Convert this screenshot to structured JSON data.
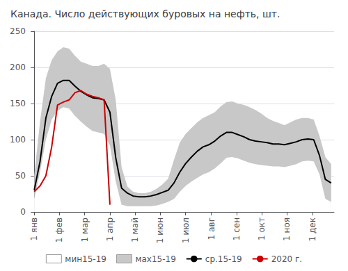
{
  "chart_data": {
    "type": "line",
    "title": "Канада. Число действующих буровых на нефть, шт.",
    "x": [
      0,
      1,
      2,
      3,
      4,
      5,
      6,
      7,
      8,
      9,
      10,
      11,
      12,
      13,
      14,
      15,
      16,
      17,
      18,
      19,
      20,
      21,
      22,
      23,
      24,
      25,
      26,
      27,
      28,
      29,
      30,
      31,
      32,
      33,
      34,
      35,
      36,
      37,
      38,
      39,
      40,
      41,
      42,
      43,
      44,
      45,
      46,
      47,
      48,
      49,
      50,
      51
    ],
    "xlim": [
      -0.5,
      51.5
    ],
    "xticks": [
      {
        "value": 0,
        "label": "1 янв"
      },
      {
        "value": 4.33,
        "label": "1 фев"
      },
      {
        "value": 8.67,
        "label": "1 мар"
      },
      {
        "value": 13.0,
        "label": "1 апр"
      },
      {
        "value": 17.33,
        "label": "1 май"
      },
      {
        "value": 21.67,
        "label": "1 июн"
      },
      {
        "value": 26.0,
        "label": "1 июл"
      },
      {
        "value": 30.43,
        "label": "1 авг"
      },
      {
        "value": 34.77,
        "label": "1 сен"
      },
      {
        "value": 39.1,
        "label": "1 окт"
      },
      {
        "value": 43.43,
        "label": "1 ноя"
      },
      {
        "value": 47.77,
        "label": "1 дек"
      }
    ],
    "ylim": [
      0,
      250
    ],
    "yticks": [
      0,
      50,
      100,
      150,
      200,
      250
    ],
    "grid": true,
    "legend": "bottom",
    "series": [
      {
        "name": "мин15-19",
        "type": "area",
        "color": "#ffffff",
        "values": [
          18,
          55,
          100,
          128,
          140,
          145,
          143,
          133,
          125,
          118,
          112,
          110,
          108,
          92,
          42,
          10,
          8,
          8,
          8,
          8,
          8,
          9,
          11,
          14,
          18,
          28,
          36,
          42,
          47,
          52,
          55,
          60,
          67,
          75,
          76,
          74,
          71,
          68,
          66,
          65,
          64,
          63,
          63,
          62,
          64,
          66,
          70,
          71,
          70,
          52,
          18,
          14
        ]
      },
      {
        "name": "мах15-19",
        "type": "area",
        "color": "#c8c8c8",
        "values": [
          50,
          125,
          185,
          210,
          222,
          228,
          226,
          216,
          208,
          205,
          202,
          202,
          205,
          198,
          155,
          62,
          35,
          28,
          26,
          26,
          28,
          32,
          38,
          46,
          72,
          96,
          108,
          116,
          124,
          130,
          134,
          138,
          146,
          152,
          153,
          150,
          148,
          145,
          141,
          136,
          130,
          126,
          123,
          120,
          124,
          128,
          130,
          130,
          128,
          105,
          76,
          66
        ]
      },
      {
        "name": "ср.15-19",
        "type": "line",
        "color": "#000000",
        "values": [
          30,
          70,
          130,
          160,
          178,
          182,
          182,
          174,
          167,
          162,
          158,
          157,
          155,
          138,
          75,
          33,
          26,
          22,
          21,
          21,
          22,
          24,
          27,
          30,
          40,
          55,
          67,
          76,
          84,
          90,
          93,
          98,
          105,
          110,
          110,
          107,
          104,
          100,
          98,
          97,
          96,
          94,
          94,
          93,
          95,
          97,
          100,
          101,
          100,
          78,
          45,
          40
        ]
      },
      {
        "name": "2020 г.",
        "type": "line",
        "color": "#cc0000",
        "x": [
          0,
          1,
          2,
          3,
          4,
          5,
          6,
          7,
          8,
          9,
          10,
          11,
          12,
          13
        ],
        "values": [
          28,
          36,
          50,
          90,
          148,
          152,
          155,
          165,
          168,
          163,
          160,
          158,
          155,
          10
        ]
      }
    ]
  }
}
